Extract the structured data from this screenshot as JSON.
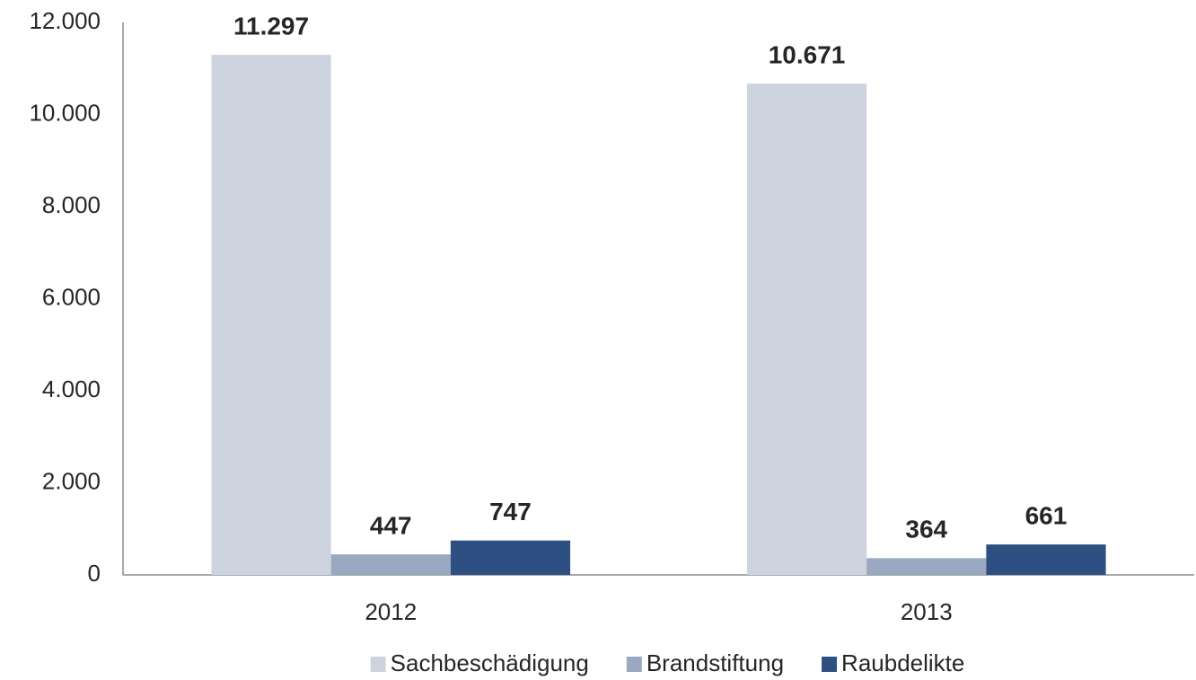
{
  "chart_data": {
    "type": "bar",
    "categories": [
      "2012",
      "2013"
    ],
    "series": [
      {
        "name": "Sachbeschädigung",
        "color": "#cdd4df",
        "values": [
          11297,
          10671
        ],
        "value_labels": [
          "11.297",
          "10.671"
        ]
      },
      {
        "name": "Brandstiftung",
        "color": "#9aa8c1",
        "values": [
          447,
          364
        ],
        "value_labels": [
          "447",
          "364"
        ]
      },
      {
        "name": "Raubdelikte",
        "color": "#2e4f82",
        "values": [
          747,
          661
        ],
        "value_labels": [
          "747",
          "661"
        ]
      }
    ],
    "ylim": [
      0,
      12000
    ],
    "yticks": [
      0,
      {
        "value": 2000,
        "label": "2.000"
      },
      {
        "value": 4000,
        "label": "4.000"
      },
      {
        "value": 6000,
        "label": "6.000"
      },
      {
        "value": 8000,
        "label": "8.000"
      },
      {
        "value": 10000,
        "label": "10.000"
      },
      {
        "value": 12000,
        "label": "12.000"
      }
    ],
    "grid": false,
    "legend": "bottom"
  }
}
